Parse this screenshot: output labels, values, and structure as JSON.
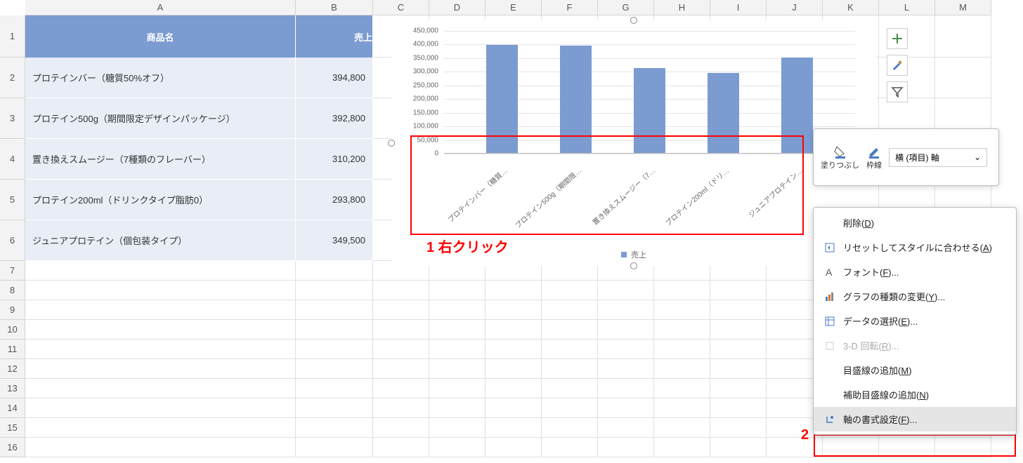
{
  "columns": {
    "letters": [
      "A",
      "B",
      "C",
      "D",
      "E",
      "F",
      "G",
      "H",
      "I",
      "J",
      "K",
      "L",
      "M"
    ],
    "widths": [
      385,
      110,
      80,
      80,
      80,
      80,
      80,
      80,
      80,
      80,
      80,
      80,
      80
    ]
  },
  "rows": {
    "heights": [
      60,
      58,
      58,
      58,
      58,
      58,
      28,
      28,
      28,
      28,
      28,
      28,
      28,
      28,
      28,
      28
    ],
    "count": 16
  },
  "table": {
    "header_bg": "#7b9bd1",
    "row_bg": "#e8edf6",
    "headers": [
      "商品名",
      "売上"
    ],
    "rows": [
      {
        "name": "プロテインバー（糖質50%オフ）",
        "value": "394,800"
      },
      {
        "name": "プロテイン500g（期間限定デザインパッケージ）",
        "value": "392,800"
      },
      {
        "name": "置き換えスムージー（7種類のフレーバー）",
        "value": "310,200"
      },
      {
        "name": "プロテイン200ml（ドリンクタイプ脂肪0）",
        "value": "293,800"
      },
      {
        "name": "ジュニアプロテイン（個包装タイプ）",
        "value": "349,500"
      }
    ]
  },
  "chart": {
    "type": "bar",
    "ymax": 450000,
    "ytick_step": 50000,
    "yticks": [
      "450,000",
      "400,000",
      "350,000",
      "300,000",
      "250,000",
      "200,000",
      "150,000",
      "100,000",
      "50,000",
      "0"
    ],
    "bar_color": "#7b9bd1",
    "grid_color": "#e5e5e5",
    "bars": [
      {
        "label": "プロテインバー（糖質…",
        "value": 394800
      },
      {
        "label": "プロテイン500g（期間限…",
        "value": 392800
      },
      {
        "label": "置き換えスムージー（7…",
        "value": 310200
      },
      {
        "label": "プロテイン200ml（ドリ…",
        "value": 293800
      },
      {
        "label": "ジュニアプロテイン…",
        "value": 349500
      }
    ],
    "legend": "売上"
  },
  "annotations": {
    "label1": "1 右クリック",
    "label2": "2"
  },
  "mini_toolbar": {
    "fill_label": "塗りつぶし",
    "outline_label": "枠線",
    "select_value": "横 (項目) 軸"
  },
  "context_menu": {
    "items": [
      {
        "icon": "",
        "label": "削除",
        "accel": "D",
        "disabled": false
      },
      {
        "icon": "reset",
        "label": "リセットしてスタイルに合わせる",
        "accel": "A",
        "disabled": false
      },
      {
        "icon": "font",
        "label": "フォント",
        "accel": "F",
        "disabled": false,
        "ellipsis": true
      },
      {
        "icon": "charttype",
        "label": "グラフの種類の変更",
        "accel": "Y",
        "disabled": false,
        "ellipsis": true
      },
      {
        "icon": "selectdata",
        "label": "データの選択",
        "accel": "E",
        "disabled": false,
        "ellipsis": true
      },
      {
        "icon": "rotate3d",
        "label": "3-D 回転",
        "accel": "R",
        "disabled": true,
        "ellipsis": true
      },
      {
        "icon": "",
        "label": "目盛線の追加",
        "accel": "M",
        "disabled": false
      },
      {
        "icon": "",
        "label": "補助目盛線の追加",
        "accel": "N",
        "disabled": false
      },
      {
        "icon": "axisformat",
        "label": "軸の書式設定",
        "accel": "F",
        "disabled": false,
        "ellipsis": true,
        "highlight": true
      }
    ]
  }
}
